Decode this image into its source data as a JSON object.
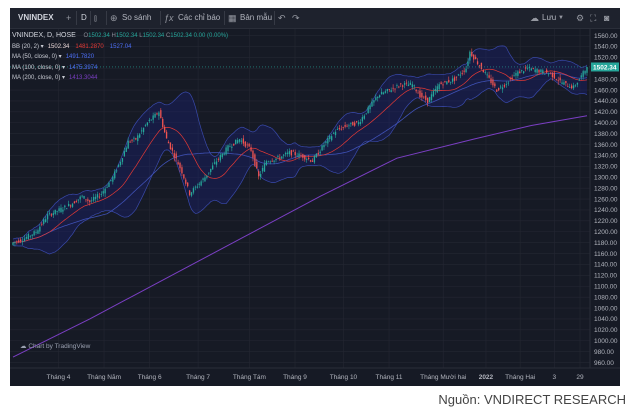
{
  "toolbar": {
    "symbol": "VNINDEX",
    "interval": "D",
    "compare": "So sánh",
    "indicators": "Các chỉ báo",
    "templates": "Bản mẫu",
    "save": "Lưu"
  },
  "legend": {
    "title": "VNINDEX, D, HOSE",
    "ohlc": {
      "o_label": "O",
      "o": "1502.34",
      "h_label": "H",
      "h": "1502.34",
      "l_label": "L",
      "l": "1502.34",
      "c_label": "C",
      "c": "1502.34",
      "chg": "0.00 (0.00%)"
    },
    "indicators": [
      {
        "label": "BB (20, 2)",
        "values": [
          "1502.34",
          "1481.2870",
          "1527.04"
        ],
        "colors": [
          "#e8d6d6",
          "#e53935",
          "#4c6ef5"
        ]
      },
      {
        "label": "MA (50, close, 0)",
        "values": [
          "1491.7820"
        ],
        "colors": [
          "#4c6ef5"
        ]
      },
      {
        "label": "MA (100, close, 0)",
        "values": [
          "1475.3974"
        ],
        "colors": [
          "#4c6ef5"
        ]
      },
      {
        "label": "MA (200, close, 0)",
        "values": [
          "1413.3044"
        ],
        "colors": [
          "#7b3fc4"
        ]
      }
    ]
  },
  "branding": {
    "label": "Chart by TradingView"
  },
  "source": "Nguồn: VNDIRECT RESEARCH",
  "colors": {
    "up": "#26a69a",
    "down": "#ef5350",
    "bb_band": "#3949ab",
    "bb_mid": "#e53935",
    "ma50": "#e53935",
    "ma100": "#3f51b5",
    "ma200": "#7b3fc4",
    "last_price_bg": "#26a69a"
  },
  "chart_data": {
    "type": "candlestick",
    "title": "VNINDEX, D, HOSE",
    "last_price": 1502.34,
    "y_ticks": [
      960,
      980,
      1000,
      1020,
      1040,
      1060,
      1080,
      1100,
      1120,
      1140,
      1160,
      1180,
      1200,
      1220,
      1240,
      1260,
      1280,
      1300,
      1320,
      1340,
      1360,
      1380,
      1400,
      1420,
      1440,
      1460,
      1480,
      1500,
      1520,
      1540,
      1560
    ],
    "ylim": [
      950,
      1572
    ],
    "x_ticks": [
      "Tháng 4",
      "Tháng Năm",
      "Tháng 6",
      "Tháng 7",
      "Tháng Tám",
      "Tháng 9",
      "Tháng 10",
      "Tháng 11",
      "Tháng Mười hai",
      "2022",
      "Tháng Hai",
      "3",
      "29"
    ],
    "close_path": [
      [
        0,
        1180
      ],
      [
        6,
        1188
      ],
      [
        12,
        1200
      ],
      [
        18,
        1230
      ],
      [
        24,
        1240
      ],
      [
        30,
        1250
      ],
      [
        36,
        1265
      ],
      [
        40,
        1255
      ],
      [
        46,
        1270
      ],
      [
        52,
        1300
      ],
      [
        56,
        1330
      ],
      [
        60,
        1365
      ],
      [
        64,
        1370
      ],
      [
        70,
        1400
      ],
      [
        76,
        1420
      ],
      [
        80,
        1370
      ],
      [
        84,
        1340
      ],
      [
        88,
        1310
      ],
      [
        92,
        1270
      ],
      [
        96,
        1285
      ],
      [
        100,
        1300
      ],
      [
        106,
        1330
      ],
      [
        112,
        1355
      ],
      [
        118,
        1370
      ],
      [
        124,
        1350
      ],
      [
        128,
        1300
      ],
      [
        132,
        1330
      ],
      [
        138,
        1335
      ],
      [
        144,
        1345
      ],
      [
        150,
        1340
      ],
      [
        156,
        1330
      ],
      [
        162,
        1360
      ],
      [
        168,
        1385
      ],
      [
        174,
        1395
      ],
      [
        180,
        1400
      ],
      [
        186,
        1430
      ],
      [
        190,
        1450
      ],
      [
        196,
        1460
      ],
      [
        202,
        1470
      ],
      [
        208,
        1470
      ],
      [
        212,
        1450
      ],
      [
        216,
        1440
      ],
      [
        222,
        1470
      ],
      [
        230,
        1480
      ],
      [
        236,
        1500
      ],
      [
        238,
        1530
      ],
      [
        242,
        1510
      ],
      [
        248,
        1480
      ],
      [
        252,
        1460
      ],
      [
        256,
        1470
      ],
      [
        262,
        1490
      ],
      [
        268,
        1500
      ],
      [
        274,
        1495
      ],
      [
        280,
        1490
      ],
      [
        284,
        1478
      ],
      [
        288,
        1470
      ],
      [
        292,
        1465
      ],
      [
        295,
        1480
      ],
      [
        299,
        1502
      ]
    ],
    "ma200": [
      [
        0,
        970
      ],
      [
        40,
        1040
      ],
      [
        80,
        1115
      ],
      [
        120,
        1190
      ],
      [
        160,
        1265
      ],
      [
        200,
        1335
      ],
      [
        240,
        1370
      ],
      [
        270,
        1395
      ],
      [
        299,
        1413
      ]
    ],
    "ma100_last": 1475.3974,
    "ma50_last": 1491.782,
    "bb": {
      "period": 20,
      "mult": 2,
      "basis_last": 1481.287,
      "upper_last": 1527.04
    }
  }
}
